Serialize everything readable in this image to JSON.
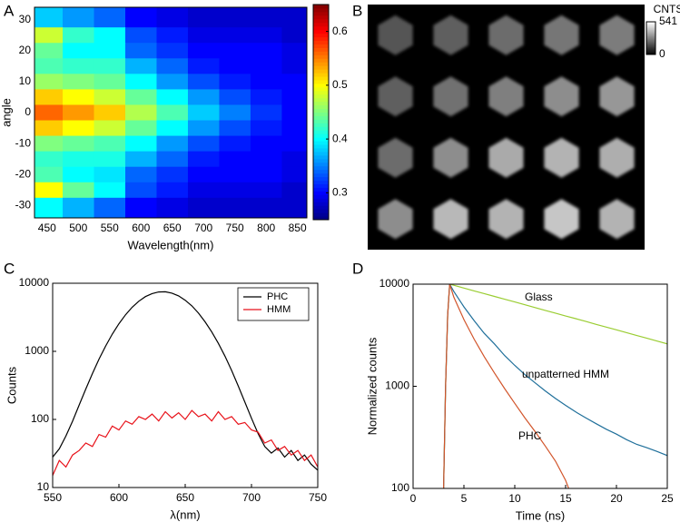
{
  "chart_data": [
    {
      "type": "heatmap",
      "panel": "A",
      "x": [
        450,
        500,
        550,
        600,
        650,
        700,
        750,
        800,
        850
      ],
      "y": [
        30,
        25,
        20,
        15,
        10,
        5,
        0,
        -5,
        -10,
        -15,
        -20,
        -25,
        -30
      ],
      "z": [
        [
          0.38,
          0.36,
          0.34,
          0.3,
          0.29,
          0.28,
          0.28,
          0.28,
          0.28
        ],
        [
          0.48,
          0.42,
          0.4,
          0.33,
          0.31,
          0.29,
          0.29,
          0.29,
          0.28
        ],
        [
          0.44,
          0.4,
          0.4,
          0.34,
          0.32,
          0.3,
          0.3,
          0.3,
          0.29
        ],
        [
          0.43,
          0.42,
          0.42,
          0.37,
          0.34,
          0.31,
          0.3,
          0.3,
          0.29
        ],
        [
          0.46,
          0.45,
          0.44,
          0.4,
          0.36,
          0.33,
          0.31,
          0.3,
          0.3
        ],
        [
          0.52,
          0.5,
          0.48,
          0.44,
          0.4,
          0.36,
          0.33,
          0.31,
          0.3
        ],
        [
          0.56,
          0.54,
          0.52,
          0.47,
          0.43,
          0.38,
          0.35,
          0.32,
          0.3
        ],
        [
          0.52,
          0.5,
          0.48,
          0.44,
          0.4,
          0.36,
          0.33,
          0.31,
          0.3
        ],
        [
          0.45,
          0.44,
          0.43,
          0.4,
          0.36,
          0.33,
          0.31,
          0.3,
          0.3
        ],
        [
          0.42,
          0.41,
          0.41,
          0.37,
          0.34,
          0.31,
          0.3,
          0.3,
          0.29
        ],
        [
          0.43,
          0.4,
          0.39,
          0.34,
          0.32,
          0.3,
          0.3,
          0.3,
          0.29
        ],
        [
          0.5,
          0.44,
          0.4,
          0.33,
          0.31,
          0.29,
          0.29,
          0.29,
          0.28
        ],
        [
          0.4,
          0.37,
          0.34,
          0.3,
          0.29,
          0.28,
          0.28,
          0.28,
          0.28
        ]
      ],
      "xlim": [
        430,
        865
      ],
      "ylim": [
        -34,
        34
      ],
      "xticks": [
        450,
        500,
        550,
        600,
        650,
        700,
        750,
        800,
        850
      ],
      "yticks": [
        30,
        20,
        10,
        0,
        -10,
        -20,
        -30
      ],
      "xlabel": "Wavelength(nm)",
      "ylabel": "angle",
      "colormap": "jet",
      "clim": [
        0.25,
        0.65
      ],
      "cticks": [
        0.3,
        0.4,
        0.5,
        0.6
      ]
    },
    {
      "type": "image",
      "panel": "B",
      "z": [
        [
          180,
          200,
          230,
          250,
          260
        ],
        [
          200,
          240,
          270,
          300,
          320
        ],
        [
          230,
          300,
          360,
          380,
          370
        ],
        [
          300,
          390,
          380,
          420,
          380
        ]
      ],
      "colormap": "gray",
      "clim": [
        0,
        541
      ],
      "cticks": [
        0,
        541
      ],
      "clabel": "CNTS"
    },
    {
      "type": "line",
      "panel": "C",
      "x": [
        550,
        555,
        560,
        565,
        570,
        575,
        580,
        585,
        590,
        595,
        600,
        605,
        610,
        615,
        620,
        625,
        630,
        635,
        640,
        645,
        650,
        655,
        660,
        665,
        670,
        675,
        680,
        685,
        690,
        695,
        700,
        705,
        710,
        715,
        720,
        725,
        730,
        735,
        740,
        745,
        750
      ],
      "series": [
        {
          "name": "PHC",
          "color": "#000000",
          "values": [
            28,
            37,
            57,
            94,
            163,
            280,
            472,
            770,
            1200,
            1790,
            2540,
            3450,
            4440,
            5450,
            6360,
            7050,
            7450,
            7490,
            7160,
            6520,
            5640,
            4650,
            3640,
            2710,
            1930,
            1310,
            850,
            525,
            310,
            180,
            104,
            62,
            40,
            32,
            38,
            28,
            35,
            25,
            30,
            22,
            18
          ]
        },
        {
          "name": "HMM",
          "color": "#e8121a",
          "values": [
            15,
            25,
            20,
            30,
            35,
            45,
            40,
            60,
            55,
            80,
            70,
            95,
            85,
            110,
            100,
            120,
            95,
            130,
            105,
            125,
            100,
            135,
            110,
            120,
            95,
            130,
            100,
            110,
            85,
            90,
            70,
            65,
            45,
            50,
            35,
            40,
            30,
            35,
            25,
            30,
            20
          ]
        }
      ],
      "xlim": [
        550,
        750
      ],
      "xticks": [
        550,
        600,
        650,
        700,
        750
      ],
      "yscale": "log",
      "ylim": [
        10,
        10000
      ],
      "yticks": [
        10,
        100,
        1000,
        10000
      ],
      "xlabel": "λ(nm)",
      "ylabel": "Counts",
      "legend": "upper right"
    },
    {
      "type": "line",
      "panel": "D",
      "series": [
        {
          "name": "Glass",
          "color": "#9acd32",
          "x": [
            3,
            3.2,
            3.4,
            3.6,
            4,
            5,
            6,
            7,
            8,
            9,
            10,
            11,
            12,
            13,
            14,
            15,
            16,
            17,
            18,
            19,
            20,
            21,
            22,
            23,
            24,
            25
          ],
          "values": [
            100,
            1000,
            5000,
            10000,
            9750,
            9160,
            8600,
            8080,
            7580,
            7120,
            6690,
            6280,
            5900,
            5540,
            5200,
            4880,
            4590,
            4310,
            4040,
            3800,
            3570,
            3350,
            3140,
            2950,
            2770,
            2600
          ]
        },
        {
          "name": "unpatterned HMM",
          "color": "#1f6f9a",
          "x": [
            3,
            3.2,
            3.4,
            3.6,
            4,
            5,
            6,
            7,
            8,
            9,
            10,
            11,
            12,
            13,
            14,
            15,
            16,
            17,
            18,
            19,
            20,
            21,
            22,
            23,
            24,
            25
          ],
          "values": [
            100,
            1000,
            5000,
            10000,
            8500,
            6000,
            4400,
            3300,
            2600,
            2000,
            1600,
            1300,
            1080,
            900,
            760,
            650,
            560,
            490,
            430,
            380,
            340,
            300,
            270,
            250,
            230,
            210
          ]
        },
        {
          "name": "PHC",
          "color": "#d2552b",
          "x": [
            3,
            3.2,
            3.4,
            3.6,
            4,
            5,
            6,
            7,
            8,
            9,
            10,
            11,
            12,
            13,
            14,
            15,
            15.3
          ],
          "values": [
            100,
            1000,
            5000,
            10000,
            7500,
            4500,
            2900,
            1950,
            1350,
            950,
            680,
            490,
            360,
            260,
            185,
            120,
            100
          ]
        }
      ],
      "xlim": [
        0,
        25
      ],
      "xticks": [
        0,
        5,
        10,
        15,
        20,
        25
      ],
      "yscale": "log",
      "ylim": [
        100,
        10000
      ],
      "yticks": [
        100,
        1000,
        10000
      ],
      "xlabel": "Time (ns)",
      "ylabel": "Normalized counts"
    }
  ]
}
